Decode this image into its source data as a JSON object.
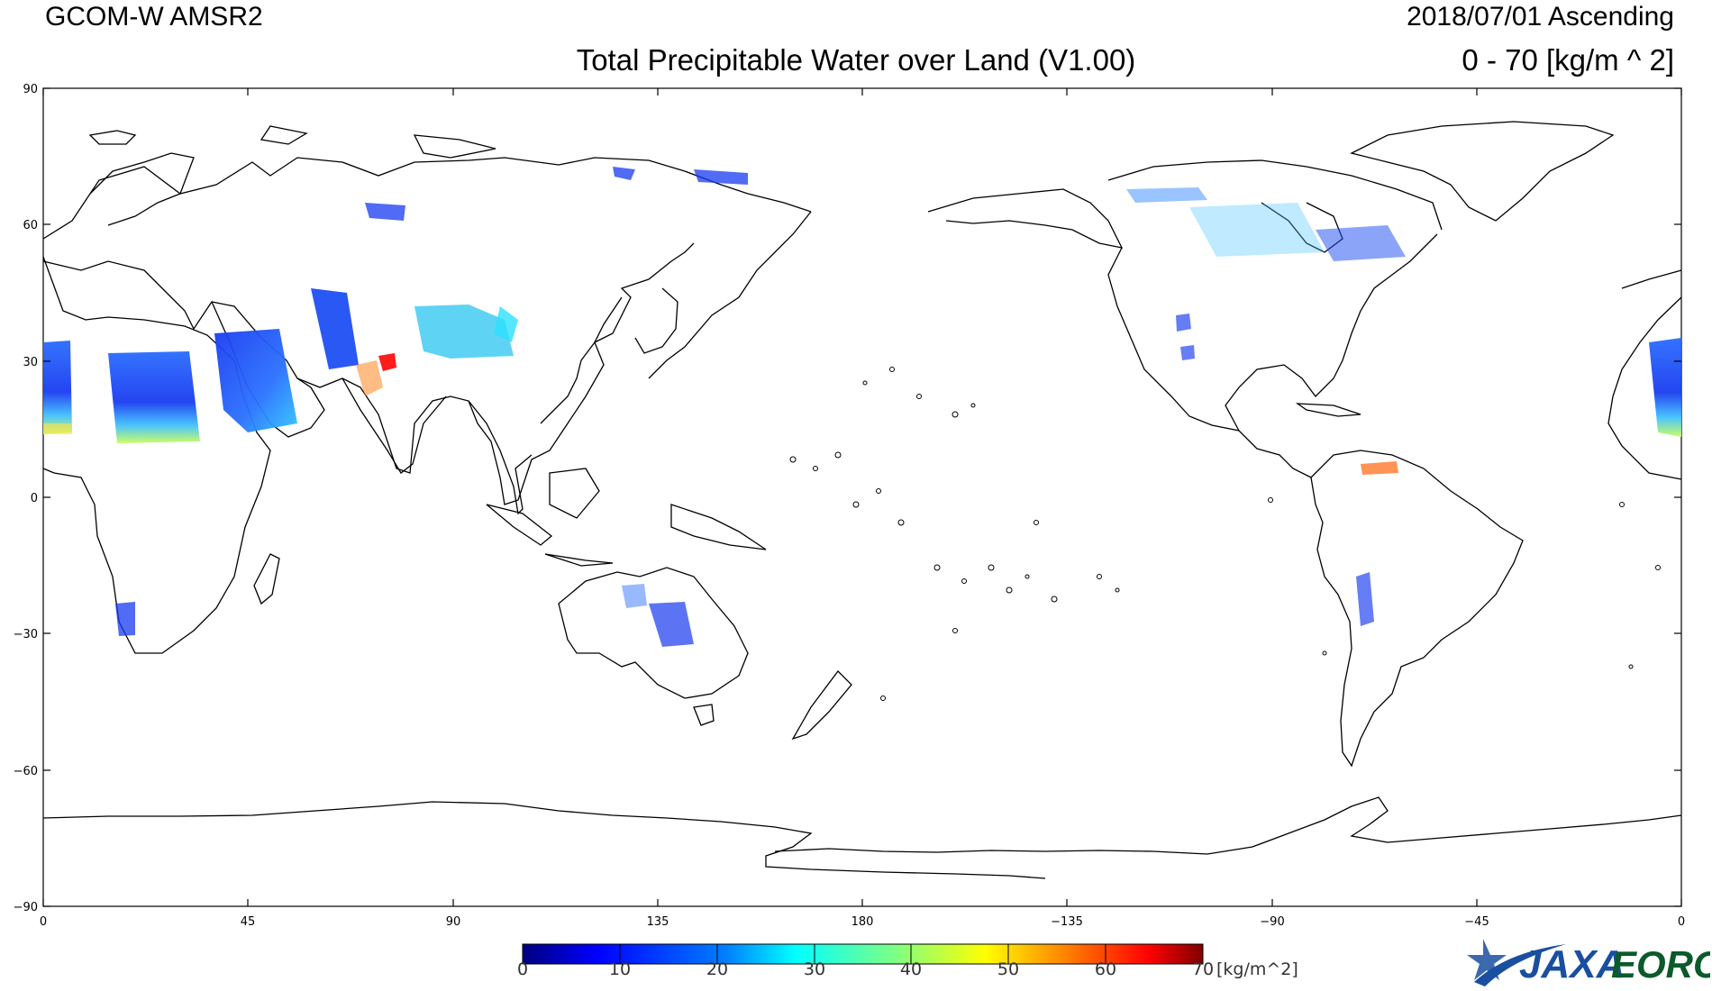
{
  "header": {
    "satellite": "GCOM-W  AMSR2",
    "date_orbit": "2018/07/01  Ascending",
    "title": "Total Precipitable Water over Land (V1.00)",
    "range": "0  - 70 [kg/m ^ 2]"
  },
  "map": {
    "projection": "equirectangular, 0° to 360° longitude",
    "background": "#ffffff",
    "coastline_color": "#000000",
    "y_ticks": [
      "90",
      "60",
      "30",
      "0",
      "−30",
      "−60",
      "−90"
    ],
    "x_ticks": [
      "0",
      "45",
      "90",
      "135",
      "180",
      "−135",
      "−90",
      "−45",
      "0"
    ]
  },
  "colorbar": {
    "ticks": [
      "0",
      "10",
      "20",
      "30",
      "40",
      "50",
      "60",
      "70"
    ],
    "unit": "[kg/m^2]",
    "colors": [
      "#00007f",
      "#0000ff",
      "#0080ff",
      "#00ffff",
      "#80ff80",
      "#ffff00",
      "#ff8000",
      "#ff0000",
      "#800000"
    ]
  },
  "logo": {
    "agency": "JAXA",
    "center": "EORC",
    "agency_color": "#1a4fa0",
    "center_color": "#0b5a2a"
  }
}
